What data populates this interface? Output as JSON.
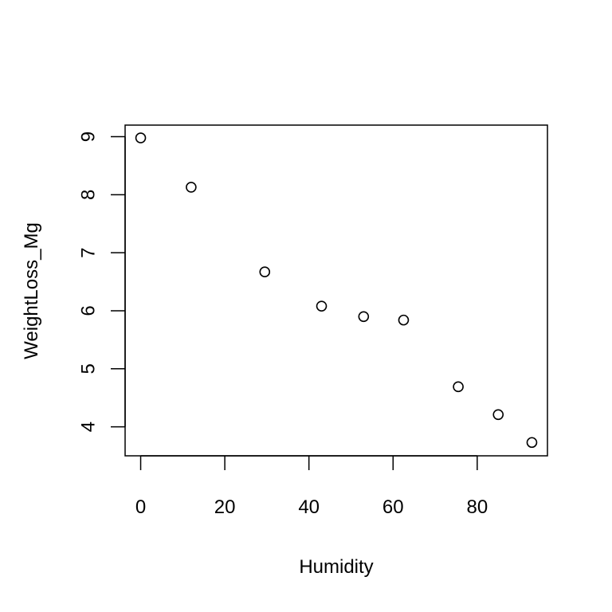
{
  "chart_data": {
    "type": "scatter",
    "title": "",
    "xlabel": "Humidity",
    "ylabel": "WeightLoss_Mg",
    "xlim": [
      -3.7,
      96.7
    ],
    "ylim": [
      3.5,
      9.2
    ],
    "x_ticks": [
      0,
      20,
      40,
      60,
      80
    ],
    "y_ticks": [
      4,
      5,
      6,
      7,
      8,
      9
    ],
    "grid": false,
    "legend": "none",
    "point_style": "open-circle",
    "color": "#000000",
    "points": [
      {
        "x": 0,
        "y": 8.98
      },
      {
        "x": 12,
        "y": 8.13
      },
      {
        "x": 29.5,
        "y": 6.67
      },
      {
        "x": 43,
        "y": 6.08
      },
      {
        "x": 53,
        "y": 5.9
      },
      {
        "x": 62.5,
        "y": 5.84
      },
      {
        "x": 75.5,
        "y": 4.69
      },
      {
        "x": 85,
        "y": 4.21
      },
      {
        "x": 93,
        "y": 3.73
      }
    ]
  }
}
